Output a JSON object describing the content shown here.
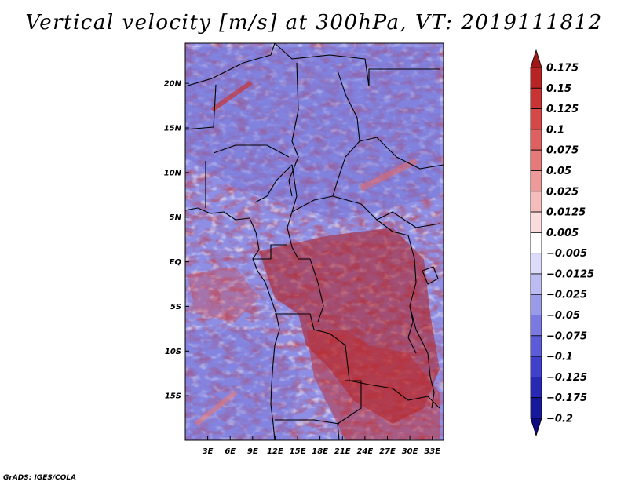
{
  "title": "Vertical velocity [m/s] at 300hPa, VT: 2019111812",
  "credit": "GrADS: IGES/COLA",
  "map": {
    "variable": "Vertical velocity",
    "units": "m/s",
    "level": "300hPa",
    "valid_time": "2019111812",
    "lat_ticks": [
      "20N",
      "15N",
      "10N",
      "5N",
      "EQ",
      "5S",
      "10S",
      "15S"
    ],
    "lon_ticks": [
      "3E",
      "6E",
      "9E",
      "12E",
      "15E",
      "18E",
      "21E",
      "24E",
      "27E",
      "30E",
      "33E"
    ],
    "lat_values": [
      20,
      15,
      10,
      5,
      0,
      -5,
      -10,
      -15
    ],
    "lon_values": [
      3,
      6,
      9,
      12,
      15,
      18,
      21,
      24,
      27,
      30,
      33
    ],
    "lon_range": [
      0,
      34.5
    ],
    "lat_range": [
      -20,
      24.5
    ]
  },
  "colorbar": {
    "labels": [
      "0.175",
      "0.15",
      "0.125",
      "0.1",
      "0.075",
      "0.05",
      "0.025",
      "0.0125",
      "0.005",
      "−0.005",
      "−0.0125",
      "−0.025",
      "−0.05",
      "−0.075",
      "−0.1",
      "−0.125",
      "−0.175",
      "−0.2"
    ],
    "colors": [
      "#a01818",
      "#b82424",
      "#c83434",
      "#d44848",
      "#de6060",
      "#e67a7a",
      "#ee9a9a",
      "#f5bcbc",
      "#fadcdc",
      "#ffffff",
      "#dcdcfa",
      "#bcbcf2",
      "#9a9aea",
      "#7a7ae2",
      "#5c5cd8",
      "#4040cc",
      "#2828b4",
      "#18189c",
      "#0c0c80"
    ]
  }
}
